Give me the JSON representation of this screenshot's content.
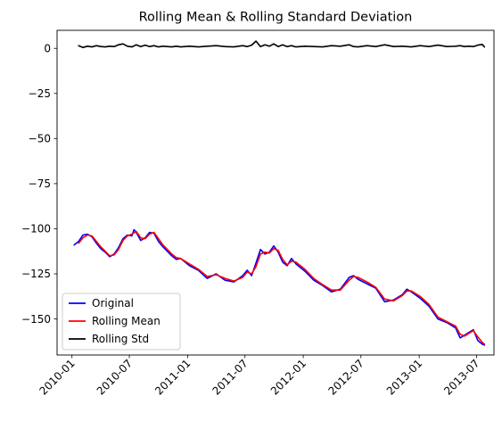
{
  "chart_data": {
    "type": "line",
    "title": "Rolling Mean & Rolling Standard Deviation",
    "xlabel": "",
    "ylabel": "",
    "x_ticks": [
      "2010-01",
      "2010-07",
      "2011-01",
      "2011-07",
      "2012-01",
      "2012-07",
      "2013-01",
      "2013-07"
    ],
    "y_ticks": [
      0,
      -25,
      -50,
      -75,
      -100,
      -125,
      -150
    ],
    "xlim": [
      "2009-11-15",
      "2013-08-25"
    ],
    "ylim": [
      -170,
      10
    ],
    "grid": false,
    "legend_position": "lower-left",
    "series": [
      {
        "name": "Original",
        "color": "#0000ff",
        "points": [
          [
            "2010-01-08",
            -109
          ],
          [
            "2010-01-22",
            -107
          ],
          [
            "2010-02-05",
            -103.5
          ],
          [
            "2010-02-19",
            -103
          ],
          [
            "2010-03-05",
            -104.5
          ],
          [
            "2010-03-19",
            -108
          ],
          [
            "2010-04-02",
            -111
          ],
          [
            "2010-04-16",
            -113
          ],
          [
            "2010-04-30",
            -115.5
          ],
          [
            "2010-05-14",
            -114
          ],
          [
            "2010-05-28",
            -110.5
          ],
          [
            "2010-06-11",
            -105.5
          ],
          [
            "2010-06-25",
            -103.5
          ],
          [
            "2010-07-09",
            -104
          ],
          [
            "2010-07-16",
            -100.5
          ],
          [
            "2010-07-23",
            -102
          ],
          [
            "2010-08-06",
            -106.5
          ],
          [
            "2010-08-20",
            -105
          ],
          [
            "2010-09-03",
            -102
          ],
          [
            "2010-09-17",
            -102.5
          ],
          [
            "2010-10-01",
            -107
          ],
          [
            "2010-10-15",
            -110
          ],
          [
            "2010-10-29",
            -112.5
          ],
          [
            "2010-11-12",
            -115
          ],
          [
            "2010-11-26",
            -117
          ],
          [
            "2010-12-10",
            -116.5
          ],
          [
            "2011-01-07",
            -120.5
          ],
          [
            "2011-02-04",
            -123
          ],
          [
            "2011-03-04",
            -127.5
          ],
          [
            "2011-04-01",
            -125
          ],
          [
            "2011-04-29",
            -128.5
          ],
          [
            "2011-05-27",
            -129.5
          ],
          [
            "2011-06-24",
            -126
          ],
          [
            "2011-07-08",
            -123
          ],
          [
            "2011-07-22",
            -126
          ],
          [
            "2011-08-05",
            -119
          ],
          [
            "2011-08-19",
            -111.5
          ],
          [
            "2011-09-02",
            -114
          ],
          [
            "2011-09-16",
            -113
          ],
          [
            "2011-09-30",
            -109.5
          ],
          [
            "2011-10-14",
            -113
          ],
          [
            "2011-10-28",
            -118.5
          ],
          [
            "2011-11-11",
            -120.5
          ],
          [
            "2011-11-25",
            -116.5
          ],
          [
            "2011-12-09",
            -119.5
          ],
          [
            "2012-01-06",
            -123.5
          ],
          [
            "2012-02-03",
            -128.5
          ],
          [
            "2012-03-02",
            -131.5
          ],
          [
            "2012-03-30",
            -135
          ],
          [
            "2012-04-27",
            -133.5
          ],
          [
            "2012-05-25",
            -127
          ],
          [
            "2012-06-08",
            -126
          ],
          [
            "2012-06-22",
            -128
          ],
          [
            "2012-07-20",
            -130.5
          ],
          [
            "2012-08-17",
            -133
          ],
          [
            "2012-09-14",
            -140.5
          ],
          [
            "2012-10-12",
            -139.5
          ],
          [
            "2012-11-09",
            -136.5
          ],
          [
            "2012-11-23",
            -133.5
          ],
          [
            "2012-12-07",
            -135
          ],
          [
            "2013-01-04",
            -138.5
          ],
          [
            "2013-02-01",
            -143
          ],
          [
            "2013-03-01",
            -150
          ],
          [
            "2013-03-29",
            -152
          ],
          [
            "2013-04-26",
            -155
          ],
          [
            "2013-05-10",
            -160.5
          ],
          [
            "2013-05-24",
            -159
          ],
          [
            "2013-06-07",
            -157.5
          ],
          [
            "2013-06-21",
            -156
          ],
          [
            "2013-07-05",
            -162
          ],
          [
            "2013-07-19",
            -164
          ],
          [
            "2013-07-26",
            -164.5
          ]
        ]
      },
      {
        "name": "Rolling Mean",
        "color": "#ff0000",
        "points": [
          [
            "2010-01-22",
            -108
          ],
          [
            "2010-02-05",
            -105
          ],
          [
            "2010-02-19",
            -103.5
          ],
          [
            "2010-03-05",
            -104
          ],
          [
            "2010-03-19",
            -107
          ],
          [
            "2010-04-02",
            -110
          ],
          [
            "2010-04-16",
            -112.5
          ],
          [
            "2010-04-30",
            -115
          ],
          [
            "2010-05-14",
            -114.5
          ],
          [
            "2010-05-28",
            -111.5
          ],
          [
            "2010-06-11",
            -106.5
          ],
          [
            "2010-06-25",
            -104
          ],
          [
            "2010-07-09",
            -103
          ],
          [
            "2010-07-23",
            -101.5
          ],
          [
            "2010-08-06",
            -105
          ],
          [
            "2010-08-20",
            -105.5
          ],
          [
            "2010-09-03",
            -103
          ],
          [
            "2010-09-17",
            -102
          ],
          [
            "2010-10-01",
            -105.5
          ],
          [
            "2010-10-15",
            -109
          ],
          [
            "2010-10-29",
            -111.5
          ],
          [
            "2010-11-12",
            -114
          ],
          [
            "2010-11-26",
            -116
          ],
          [
            "2010-12-10",
            -116.5
          ],
          [
            "2011-01-07",
            -119.5
          ],
          [
            "2011-02-04",
            -122.5
          ],
          [
            "2011-03-04",
            -126.5
          ],
          [
            "2011-04-01",
            -125.5
          ],
          [
            "2011-04-29",
            -127.5
          ],
          [
            "2011-05-27",
            -129
          ],
          [
            "2011-06-24",
            -127
          ],
          [
            "2011-07-08",
            -124
          ],
          [
            "2011-07-22",
            -125
          ],
          [
            "2011-08-05",
            -121
          ],
          [
            "2011-08-19",
            -114
          ],
          [
            "2011-09-02",
            -113
          ],
          [
            "2011-09-16",
            -113.5
          ],
          [
            "2011-09-30",
            -111
          ],
          [
            "2011-10-14",
            -112
          ],
          [
            "2011-10-28",
            -117
          ],
          [
            "2011-11-11",
            -120
          ],
          [
            "2011-11-25",
            -118
          ],
          [
            "2011-12-09",
            -118.5
          ],
          [
            "2012-01-06",
            -122.5
          ],
          [
            "2012-02-03",
            -127.5
          ],
          [
            "2012-03-02",
            -131
          ],
          [
            "2012-03-30",
            -134
          ],
          [
            "2012-04-27",
            -134
          ],
          [
            "2012-05-25",
            -128.5
          ],
          [
            "2012-06-08",
            -126.5
          ],
          [
            "2012-06-22",
            -127
          ],
          [
            "2012-07-20",
            -129.5
          ],
          [
            "2012-08-17",
            -132.5
          ],
          [
            "2012-09-14",
            -139
          ],
          [
            "2012-10-12",
            -140
          ],
          [
            "2012-11-09",
            -137
          ],
          [
            "2012-11-23",
            -134.5
          ],
          [
            "2012-12-07",
            -134.5
          ],
          [
            "2013-01-04",
            -137.5
          ],
          [
            "2013-02-01",
            -142
          ],
          [
            "2013-03-01",
            -149
          ],
          [
            "2013-03-29",
            -151.5
          ],
          [
            "2013-04-26",
            -154
          ],
          [
            "2013-05-10",
            -158.5
          ],
          [
            "2013-05-24",
            -159.5
          ],
          [
            "2013-06-07",
            -158
          ],
          [
            "2013-06-21",
            -156.5
          ],
          [
            "2013-07-05",
            -160
          ],
          [
            "2013-07-19",
            -163
          ],
          [
            "2013-07-26",
            -164
          ]
        ]
      },
      {
        "name": "Rolling Std",
        "color": "#000000",
        "points": [
          [
            "2010-01-22",
            1.5
          ],
          [
            "2010-02-05",
            0.5
          ],
          [
            "2010-02-19",
            1.2
          ],
          [
            "2010-03-05",
            0.8
          ],
          [
            "2010-03-19",
            1.5
          ],
          [
            "2010-04-02",
            1.0
          ],
          [
            "2010-04-16",
            0.8
          ],
          [
            "2010-04-30",
            1.2
          ],
          [
            "2010-05-14",
            1.0
          ],
          [
            "2010-05-28",
            2.0
          ],
          [
            "2010-06-11",
            2.5
          ],
          [
            "2010-06-25",
            1.2
          ],
          [
            "2010-07-09",
            0.8
          ],
          [
            "2010-07-23",
            2.0
          ],
          [
            "2010-08-06",
            1.0
          ],
          [
            "2010-08-20",
            1.8
          ],
          [
            "2010-09-03",
            1.0
          ],
          [
            "2010-09-17",
            1.5
          ],
          [
            "2010-10-01",
            0.8
          ],
          [
            "2010-10-15",
            1.2
          ],
          [
            "2010-10-29",
            1.0
          ],
          [
            "2010-11-12",
            0.8
          ],
          [
            "2010-11-26",
            1.2
          ],
          [
            "2010-12-10",
            0.8
          ],
          [
            "2011-01-07",
            1.2
          ],
          [
            "2011-02-04",
            0.8
          ],
          [
            "2011-03-04",
            1.2
          ],
          [
            "2011-04-01",
            1.5
          ],
          [
            "2011-04-29",
            1.0
          ],
          [
            "2011-05-27",
            0.8
          ],
          [
            "2011-06-24",
            1.5
          ],
          [
            "2011-07-08",
            1.0
          ],
          [
            "2011-07-22",
            1.8
          ],
          [
            "2011-08-05",
            4.0
          ],
          [
            "2011-08-19",
            1.0
          ],
          [
            "2011-09-02",
            2.0
          ],
          [
            "2011-09-16",
            1.2
          ],
          [
            "2011-09-30",
            2.5
          ],
          [
            "2011-10-14",
            1.0
          ],
          [
            "2011-10-28",
            2.0
          ],
          [
            "2011-11-11",
            1.0
          ],
          [
            "2011-11-25",
            1.5
          ],
          [
            "2011-12-09",
            0.8
          ],
          [
            "2012-01-06",
            1.2
          ],
          [
            "2012-02-03",
            1.0
          ],
          [
            "2012-03-02",
            0.8
          ],
          [
            "2012-03-30",
            1.5
          ],
          [
            "2012-04-27",
            1.2
          ],
          [
            "2012-05-25",
            2.0
          ],
          [
            "2012-06-08",
            1.0
          ],
          [
            "2012-06-22",
            0.8
          ],
          [
            "2012-07-20",
            1.5
          ],
          [
            "2012-08-17",
            1.0
          ],
          [
            "2012-09-14",
            2.0
          ],
          [
            "2012-10-12",
            1.0
          ],
          [
            "2012-11-09",
            1.2
          ],
          [
            "2012-11-23",
            1.0
          ],
          [
            "2012-12-07",
            0.8
          ],
          [
            "2013-01-04",
            1.5
          ],
          [
            "2013-02-01",
            1.0
          ],
          [
            "2013-03-01",
            1.8
          ],
          [
            "2013-03-29",
            1.0
          ],
          [
            "2013-04-26",
            1.2
          ],
          [
            "2013-05-10",
            1.5
          ],
          [
            "2013-05-24",
            1.0
          ],
          [
            "2013-06-07",
            1.2
          ],
          [
            "2013-06-21",
            1.0
          ],
          [
            "2013-07-05",
            1.8
          ],
          [
            "2013-07-19",
            2.2
          ],
          [
            "2013-07-26",
            0.8
          ]
        ]
      }
    ]
  }
}
